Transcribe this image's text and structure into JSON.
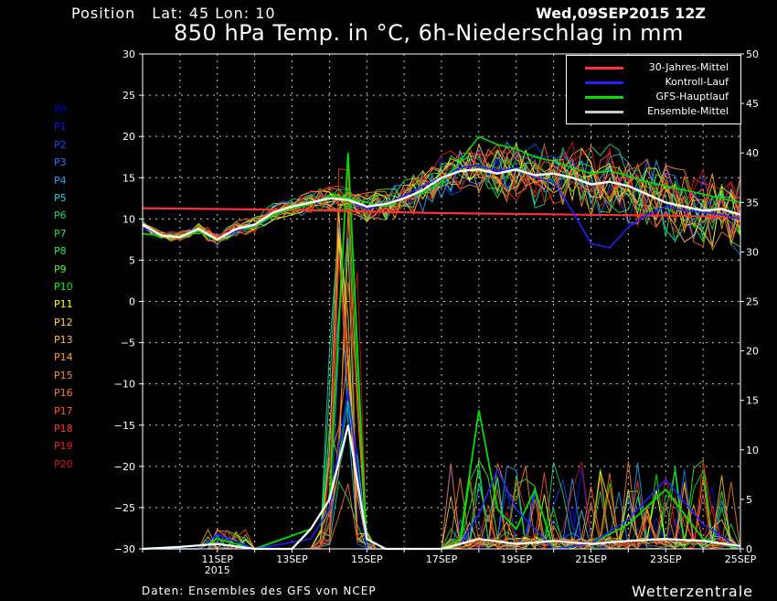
{
  "header": {
    "position_label": "Position",
    "position_coords": "Lat: 45 Lon: 10",
    "run_date": "Wed,09SEP2015 12Z",
    "title": "850 hPa Temp. in °C, 6h-Niederschlag in mm"
  },
  "footer": {
    "source": "Daten: Ensembles des GFS von NCEP",
    "brand": "Wetterzentrale"
  },
  "members": [
    {
      "label": "P0",
      "color": "#0000e0"
    },
    {
      "label": "P1",
      "color": "#0a1ef0"
    },
    {
      "label": "P2",
      "color": "#1446ff"
    },
    {
      "label": "P3",
      "color": "#1e78ff"
    },
    {
      "label": "P4",
      "color": "#28a0ff"
    },
    {
      "label": "P5",
      "color": "#1ed2e6"
    },
    {
      "label": "P6",
      "color": "#14dc78"
    },
    {
      "label": "P7",
      "color": "#14e650"
    },
    {
      "label": "P8",
      "color": "#1ef03c"
    },
    {
      "label": "P9",
      "color": "#50f028"
    },
    {
      "label": "P10",
      "color": "#00ff00"
    },
    {
      "label": "P11",
      "color": "#ffff00"
    },
    {
      "label": "P12",
      "color": "#ffd23c"
    },
    {
      "label": "P13",
      "color": "#ffbe32"
    },
    {
      "label": "P14",
      "color": "#ffa028"
    },
    {
      "label": "P15",
      "color": "#ff8c28"
    },
    {
      "label": "P16",
      "color": "#ff7828"
    },
    {
      "label": "P17",
      "color": "#ff5a1e"
    },
    {
      "label": "P18",
      "color": "#ff3c14"
    },
    {
      "label": "P19",
      "color": "#f01e14"
    },
    {
      "label": "P20",
      "color": "#dc1414"
    }
  ],
  "legend": [
    {
      "label": "30-Jahres-Mittel",
      "color": "#ff3030"
    },
    {
      "label": "Kontroll-Lauf",
      "color": "#2020ff"
    },
    {
      "label": "GFS-Hauptlauf",
      "color": "#00e000"
    },
    {
      "label": "Ensemble-Mittel",
      "color": "#c8c8c8"
    }
  ],
  "chart_data": {
    "type": "line",
    "x_ticks": [
      {
        "label": "11SEP",
        "sub": "2015",
        "x": 2
      },
      {
        "label": "13SEP",
        "sub": "",
        "x": 4
      },
      {
        "label": "15SEP",
        "sub": "",
        "x": 6
      },
      {
        "label": "17SEP",
        "sub": "",
        "x": 8
      },
      {
        "label": "19SEP",
        "sub": "",
        "x": 10
      },
      {
        "label": "21SEP",
        "sub": "",
        "x": 12
      },
      {
        "label": "23SEP",
        "sub": "",
        "x": 14
      },
      {
        "label": "25SEP",
        "sub": "",
        "x": 16
      }
    ],
    "xlim": [
      0,
      16
    ],
    "y_left": {
      "lim": [
        -30,
        30
      ],
      "ticks": [
        30,
        25,
        20,
        15,
        10,
        5,
        0,
        -5,
        -10,
        -15,
        -20,
        -25,
        -30
      ]
    },
    "y_right": {
      "lim": [
        0,
        50
      ],
      "ticks": [
        50,
        45,
        40,
        35,
        30,
        25,
        20,
        15,
        10,
        5,
        0
      ]
    },
    "grid": true,
    "legend_position": "top-right",
    "temp_climate": [
      [
        0,
        11.3
      ],
      [
        2,
        11.2
      ],
      [
        4,
        11.1
      ],
      [
        6,
        10.9
      ],
      [
        8,
        10.7
      ],
      [
        10,
        10.6
      ],
      [
        12,
        10.5
      ],
      [
        14,
        10.4
      ],
      [
        16,
        10.2
      ]
    ],
    "temp_gfs": [
      [
        0,
        8.2
      ],
      [
        0.5,
        8.0
      ],
      [
        1,
        7.7
      ],
      [
        1.5,
        8.5
      ],
      [
        2,
        7.4
      ],
      [
        2.5,
        8.8
      ],
      [
        3,
        9.0
      ],
      [
        3.5,
        10.5
      ],
      [
        4,
        11.2
      ],
      [
        4.5,
        11.8
      ],
      [
        5,
        12.8
      ],
      [
        5.5,
        12.5
      ],
      [
        6,
        12.0
      ],
      [
        6.5,
        11.5
      ],
      [
        7,
        12.5
      ],
      [
        7.5,
        13.2
      ],
      [
        8,
        14.5
      ],
      [
        8.5,
        17.0
      ],
      [
        9,
        20.0
      ],
      [
        9.5,
        19.0
      ],
      [
        10,
        18.5
      ],
      [
        10.5,
        17.5
      ],
      [
        11,
        17.0
      ],
      [
        11.5,
        16.2
      ],
      [
        12,
        15.5
      ],
      [
        12.5,
        15.8
      ],
      [
        13,
        15.2
      ],
      [
        13.5,
        14.5
      ],
      [
        14,
        14.0
      ],
      [
        14.5,
        13.5
      ],
      [
        15,
        13.0
      ],
      [
        15.5,
        12.5
      ],
      [
        16,
        12.0
      ]
    ],
    "temp_control": [
      [
        0,
        9.0
      ],
      [
        0.5,
        8.0
      ],
      [
        1,
        7.8
      ],
      [
        1.5,
        8.8
      ],
      [
        2,
        7.5
      ],
      [
        2.5,
        8.5
      ],
      [
        3,
        9.2
      ],
      [
        3.5,
        10.8
      ],
      [
        4,
        11.5
      ],
      [
        4.5,
        12.0
      ],
      [
        5,
        12.5
      ],
      [
        5.5,
        12.3
      ],
      [
        6,
        11.2
      ],
      [
        6.5,
        11.8
      ],
      [
        7,
        12.8
      ],
      [
        7.5,
        14.0
      ],
      [
        8,
        15.0
      ],
      [
        8.5,
        16.2
      ],
      [
        9,
        16.5
      ],
      [
        9.5,
        15.8
      ],
      [
        10,
        16.2
      ],
      [
        10.5,
        15.0
      ],
      [
        11,
        14.5
      ],
      [
        11.5,
        11.0
      ],
      [
        12,
        7.0
      ],
      [
        12.5,
        6.5
      ],
      [
        13,
        9.0
      ],
      [
        13.5,
        10.5
      ],
      [
        14,
        11.5
      ],
      [
        14.5,
        11.0
      ],
      [
        15,
        10.8
      ],
      [
        15.5,
        10.5
      ],
      [
        16,
        10.0
      ]
    ],
    "temp_ensemble_mean": [
      [
        0,
        9.3
      ],
      [
        0.5,
        8.0
      ],
      [
        1,
        7.8
      ],
      [
        1.5,
        8.8
      ],
      [
        2,
        7.5
      ],
      [
        2.5,
        8.8
      ],
      [
        3,
        9.3
      ],
      [
        3.5,
        10.8
      ],
      [
        4,
        11.5
      ],
      [
        4.5,
        12.0
      ],
      [
        5,
        12.5
      ],
      [
        5.5,
        12.3
      ],
      [
        6,
        11.5
      ],
      [
        6.5,
        11.8
      ],
      [
        7,
        12.5
      ],
      [
        7.5,
        13.5
      ],
      [
        8,
        15.0
      ],
      [
        8.5,
        15.8
      ],
      [
        9,
        16.0
      ],
      [
        9.5,
        15.5
      ],
      [
        10,
        16.0
      ],
      [
        10.5,
        15.3
      ],
      [
        11,
        15.5
      ],
      [
        11.5,
        15.0
      ],
      [
        12,
        14.2
      ],
      [
        12.5,
        14.5
      ],
      [
        13,
        14.0
      ],
      [
        13.5,
        13.0
      ],
      [
        14,
        12.0
      ],
      [
        14.5,
        11.5
      ],
      [
        15,
        11.0
      ],
      [
        15.5,
        11.2
      ],
      [
        16,
        10.5
      ]
    ],
    "precip_control": [
      [
        0,
        0
      ],
      [
        1.5,
        0
      ],
      [
        2,
        1.5
      ],
      [
        3,
        0
      ],
      [
        4.5,
        1
      ],
      [
        5,
        4
      ],
      [
        5.5,
        16
      ],
      [
        6,
        0
      ],
      [
        8,
        0
      ],
      [
        8.5,
        0.5
      ],
      [
        9,
        3.5
      ],
      [
        9.5,
        8
      ],
      [
        10,
        4
      ],
      [
        10.5,
        2
      ],
      [
        11,
        0
      ],
      [
        12,
        0.5
      ],
      [
        13,
        3
      ],
      [
        14,
        7
      ],
      [
        15,
        2.5
      ],
      [
        16,
        0
      ]
    ],
    "precip_gfs": [
      [
        0,
        0
      ],
      [
        1.5,
        0
      ],
      [
        2,
        1
      ],
      [
        3,
        0
      ],
      [
        4.5,
        2
      ],
      [
        5,
        5
      ],
      [
        5.5,
        40
      ],
      [
        6,
        0
      ],
      [
        8,
        0
      ],
      [
        8.5,
        1
      ],
      [
        9,
        14
      ],
      [
        9.5,
        4
      ],
      [
        10,
        2
      ],
      [
        10.5,
        6
      ],
      [
        11,
        0
      ],
      [
        12,
        0.5
      ],
      [
        13,
        2.5
      ],
      [
        14,
        6
      ],
      [
        15,
        1
      ],
      [
        16,
        0
      ]
    ],
    "precip_ensemble_mean": [
      [
        0,
        0
      ],
      [
        1,
        0.2
      ],
      [
        2,
        0.5
      ],
      [
        3,
        0
      ],
      [
        4,
        0
      ],
      [
        4.5,
        2
      ],
      [
        5,
        5
      ],
      [
        5.5,
        12.5
      ],
      [
        6,
        1
      ],
      [
        6.5,
        0
      ],
      [
        8,
        0
      ],
      [
        8.5,
        0.5
      ],
      [
        9,
        1
      ],
      [
        10,
        0.5
      ],
      [
        11,
        0.8
      ],
      [
        12,
        0.5
      ],
      [
        13,
        0.8
      ],
      [
        14,
        1
      ],
      [
        15,
        0.8
      ],
      [
        16,
        0.3
      ]
    ]
  }
}
